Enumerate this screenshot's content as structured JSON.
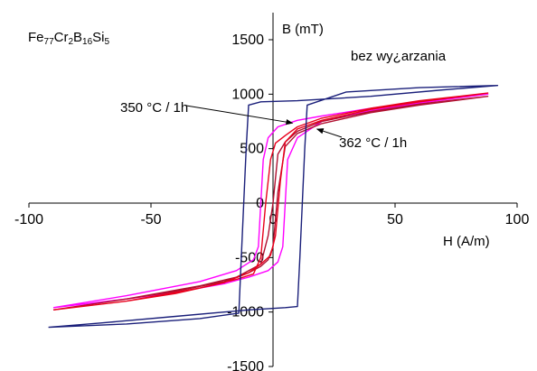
{
  "chart_data": {
    "type": "line",
    "title_parts": [
      {
        "t": "Fe",
        "sub": false
      },
      {
        "t": "77",
        "sub": true
      },
      {
        "t": "Cr",
        "sub": false
      },
      {
        "t": "2",
        "sub": true
      },
      {
        "t": "B",
        "sub": false
      },
      {
        "t": "16",
        "sub": true
      },
      {
        "t": "Si",
        "sub": false
      },
      {
        "t": "5",
        "sub": true
      }
    ],
    "xlabel": "H (A/m)",
    "ylabel": "B (mT)",
    "xlim": [
      -100,
      100
    ],
    "ylim": [
      -1500,
      1500
    ],
    "x_ticks": [
      -100,
      -50,
      0,
      50,
      100
    ],
    "y_ticks": [
      -1500,
      -1000,
      -500,
      0,
      500,
      1000,
      1500
    ],
    "x_tick_labels": [
      "-100",
      "-50",
      "0",
      "50",
      "100"
    ],
    "y_tick_labels": [
      "-1500",
      "-1000",
      "-500",
      "0",
      "500",
      "1000",
      "1500"
    ],
    "grid": false,
    "annotations": [
      {
        "id": "ann-as-cast",
        "text": "bez wy¿arzania",
        "series": "bez wy¿arzania"
      },
      {
        "id": "ann-350",
        "text": "350 °C / 1h",
        "series": "350 °C / 1h",
        "arrow_to": [
          8,
          735
        ]
      },
      {
        "id": "ann-362",
        "text": "362 °C / 1h",
        "series": "362 °C / 1h",
        "arrow_to": [
          18,
          680
        ]
      }
    ],
    "series": [
      {
        "name": "bez wy¿arzania",
        "color": "#1a1f7a",
        "upper": [
          [
            -92,
            -1140
          ],
          [
            -60,
            -1110
          ],
          [
            -30,
            -1060
          ],
          [
            -14,
            -1010
          ],
          [
            -13,
            -500
          ],
          [
            -12,
            0
          ],
          [
            -11,
            500
          ],
          [
            -10,
            900
          ],
          [
            -5,
            930
          ],
          [
            10,
            940
          ],
          [
            40,
            980
          ],
          [
            70,
            1040
          ],
          [
            92,
            1080
          ]
        ],
        "lower": [
          [
            92,
            1080
          ],
          [
            60,
            1060
          ],
          [
            30,
            1020
          ],
          [
            14,
            900
          ],
          [
            13,
            500
          ],
          [
            12,
            0
          ],
          [
            11,
            -500
          ],
          [
            10,
            -950
          ],
          [
            5,
            -960
          ],
          [
            -10,
            -980
          ],
          [
            -40,
            -1040
          ],
          [
            -70,
            -1100
          ],
          [
            -92,
            -1140
          ]
        ]
      },
      {
        "name": "350 °C / 1h",
        "color": "#e8001c",
        "upper": [
          [
            -90,
            -980
          ],
          [
            -60,
            -900
          ],
          [
            -30,
            -780
          ],
          [
            -15,
            -700
          ],
          [
            -8,
            -650
          ],
          [
            -5,
            -500
          ],
          [
            -3,
            0
          ],
          [
            -1,
            400
          ],
          [
            1,
            550
          ],
          [
            5,
            620
          ],
          [
            10,
            700
          ],
          [
            20,
            780
          ],
          [
            40,
            870
          ],
          [
            60,
            940
          ],
          [
            88,
            1010
          ]
        ],
        "lower": [
          [
            88,
            1010
          ],
          [
            60,
            930
          ],
          [
            40,
            860
          ],
          [
            20,
            760
          ],
          [
            10,
            680
          ],
          [
            5,
            560
          ],
          [
            3,
            200
          ],
          [
            1,
            -300
          ],
          [
            -1,
            -480
          ],
          [
            -5,
            -560
          ],
          [
            -10,
            -640
          ],
          [
            -20,
            -730
          ],
          [
            -40,
            -830
          ],
          [
            -60,
            -900
          ],
          [
            -90,
            -980
          ]
        ]
      },
      {
        "name": "362 °C / 1h",
        "color": "#b01030",
        "upper": [
          [
            -90,
            -980
          ],
          [
            -60,
            -880
          ],
          [
            -30,
            -760
          ],
          [
            -15,
            -680
          ],
          [
            -5,
            -560
          ],
          [
            -2,
            -300
          ],
          [
            0,
            0
          ],
          [
            2,
            450
          ],
          [
            5,
            560
          ],
          [
            10,
            660
          ],
          [
            20,
            750
          ],
          [
            40,
            840
          ],
          [
            60,
            910
          ],
          [
            88,
            980
          ]
        ],
        "lower": [
          [
            88,
            980
          ],
          [
            60,
            900
          ],
          [
            40,
            830
          ],
          [
            20,
            730
          ],
          [
            10,
            640
          ],
          [
            5,
            520
          ],
          [
            2,
            100
          ],
          [
            0,
            -400
          ],
          [
            -2,
            -520
          ],
          [
            -5,
            -580
          ],
          [
            -10,
            -640
          ],
          [
            -20,
            -720
          ],
          [
            -40,
            -810
          ],
          [
            -60,
            -880
          ],
          [
            -90,
            -980
          ]
        ]
      },
      {
        "name": "magenta",
        "color": "#ff00ff",
        "upper": [
          [
            -90,
            -960
          ],
          [
            -60,
            -850
          ],
          [
            -30,
            -720
          ],
          [
            -15,
            -620
          ],
          [
            -8,
            -520
          ],
          [
            -6,
            -400
          ],
          [
            -5,
            0
          ],
          [
            -4,
            400
          ],
          [
            -2,
            600
          ],
          [
            2,
            700
          ],
          [
            10,
            760
          ],
          [
            20,
            800
          ],
          [
            40,
            870
          ],
          [
            60,
            930
          ],
          [
            88,
            1000
          ]
        ],
        "lower": [
          [
            88,
            1000
          ],
          [
            60,
            920
          ],
          [
            40,
            850
          ],
          [
            20,
            750
          ],
          [
            10,
            600
          ],
          [
            6,
            400
          ],
          [
            5,
            0
          ],
          [
            4,
            -400
          ],
          [
            2,
            -540
          ],
          [
            -2,
            -620
          ],
          [
            -10,
            -680
          ],
          [
            -20,
            -740
          ],
          [
            -40,
            -820
          ],
          [
            -60,
            -880
          ],
          [
            -90,
            -960
          ]
        ]
      }
    ]
  }
}
